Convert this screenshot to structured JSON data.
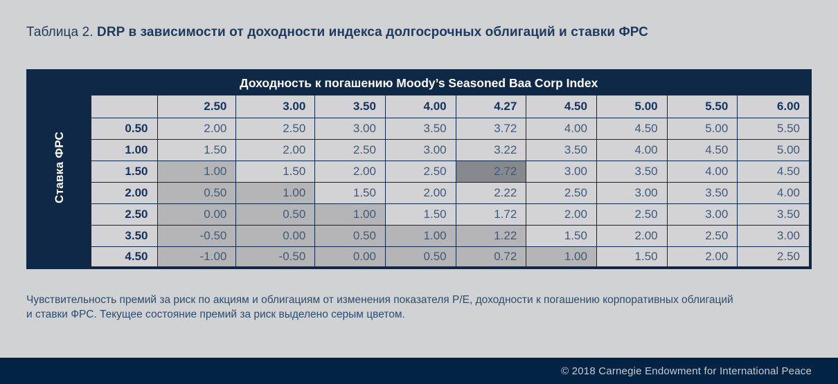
{
  "title": {
    "prefix": "Таблица 2. ",
    "text": "DRP в зависимости от доходности индекса долгосрочных облигаций и ставки ФРС"
  },
  "caption_lines": [
    "Чувствительность премий за риск по акциям и облигациям от изменения показателя P/E, доходности к погашению корпоративных облигаций",
    "и ставки ФРС. Текущее состояние премий за риск выделено серым цветом."
  ],
  "footer": {
    "copyright": "© 2018 Carnegie Endowment for International Peace"
  },
  "colors": {
    "navy": "#0f2848",
    "footer-bg": "#022344",
    "page-bg": "#d1d2d4",
    "cell-light": "#d3d3d5",
    "cell-shaded": "#b5b5b7",
    "cell-highlight": "#88898c",
    "title-color": "#1c3a5e"
  },
  "chart_data": {
    "type": "table",
    "col_axis_title": "Доходность к погашению Moody’s Seasoned Baa Corp Index",
    "row_axis_title": "Ставка ФРС",
    "columns": [
      "2.50",
      "3.00",
      "3.50",
      "4.00",
      "4.27",
      "4.50",
      "5.00",
      "5.50",
      "6.00"
    ],
    "rows": [
      {
        "label": "0.50",
        "values": [
          "2.00",
          "2.50",
          "3.00",
          "3.50",
          "3.72",
          "4.00",
          "4.50",
          "5.00",
          "5.50"
        ]
      },
      {
        "label": "1.00",
        "values": [
          "1.50",
          "2.00",
          "2.50",
          "3.00",
          "3.22",
          "3.50",
          "4.00",
          "4.50",
          "5.00"
        ]
      },
      {
        "label": "1.50",
        "values": [
          "1.00",
          "1.50",
          "2.00",
          "2.50",
          "2.72",
          "3.00",
          "3.50",
          "4.00",
          "4.50"
        ]
      },
      {
        "label": "2.00",
        "values": [
          "0.50",
          "1.00",
          "1.50",
          "2.00",
          "2.22",
          "2.50",
          "3.00",
          "3.50",
          "4.00"
        ]
      },
      {
        "label": "2.50",
        "values": [
          "0.00",
          "0.50",
          "1.00",
          "1.50",
          "1.72",
          "2.00",
          "2.50",
          "3.00",
          "3.50"
        ]
      },
      {
        "label": "3.50",
        "values": [
          "-0.50",
          "0.00",
          "0.50",
          "1.00",
          "1.22",
          "1.50",
          "2.00",
          "2.50",
          "3.00"
        ]
      },
      {
        "label": "4.50",
        "values": [
          "-1.00",
          "-0.50",
          "0.00",
          "0.50",
          "0.72",
          "1.00",
          "1.50",
          "2.00",
          "2.50"
        ]
      }
    ],
    "shaded_cells": [
      [
        2,
        0
      ],
      [
        3,
        0
      ],
      [
        3,
        1
      ],
      [
        4,
        0
      ],
      [
        4,
        1
      ],
      [
        4,
        2
      ],
      [
        5,
        0
      ],
      [
        5,
        1
      ],
      [
        5,
        2
      ],
      [
        5,
        3
      ],
      [
        5,
        4
      ],
      [
        6,
        0
      ],
      [
        6,
        1
      ],
      [
        6,
        2
      ],
      [
        6,
        3
      ],
      [
        6,
        4
      ],
      [
        6,
        5
      ]
    ],
    "highlight_cell": [
      2,
      4
    ]
  }
}
